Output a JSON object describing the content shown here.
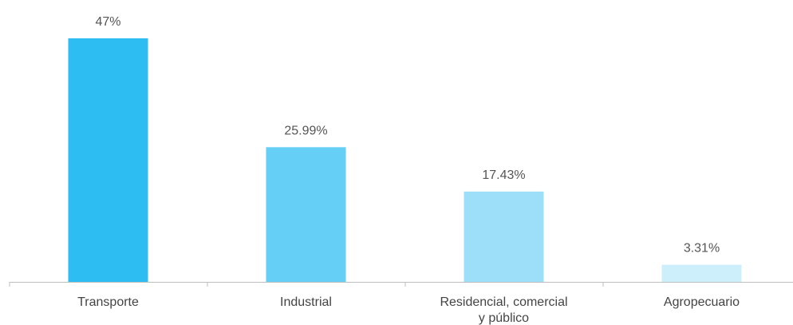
{
  "chart_data": {
    "type": "bar",
    "categories": [
      "Transporte",
      "Industrial",
      "Residencial, comercial y público",
      "Agropecuario"
    ],
    "category_lines": [
      [
        "Transporte"
      ],
      [
        "Industrial"
      ],
      [
        "Residencial, comercial",
        "y público"
      ],
      [
        "Agropecuario"
      ]
    ],
    "values": [
      47,
      25.99,
      17.43,
      3.31
    ],
    "value_labels": [
      "47%",
      "25.99%",
      "17.43%",
      "3.31%"
    ],
    "colors": [
      "#2dbdf2",
      "#66cff5",
      "#9ddff8",
      "#cdeffb"
    ],
    "axis_color": "#bfbfbf",
    "ylim": [
      0,
      47
    ],
    "grid": false,
    "legend": "none",
    "title": "",
    "xlabel": "",
    "ylabel": ""
  }
}
